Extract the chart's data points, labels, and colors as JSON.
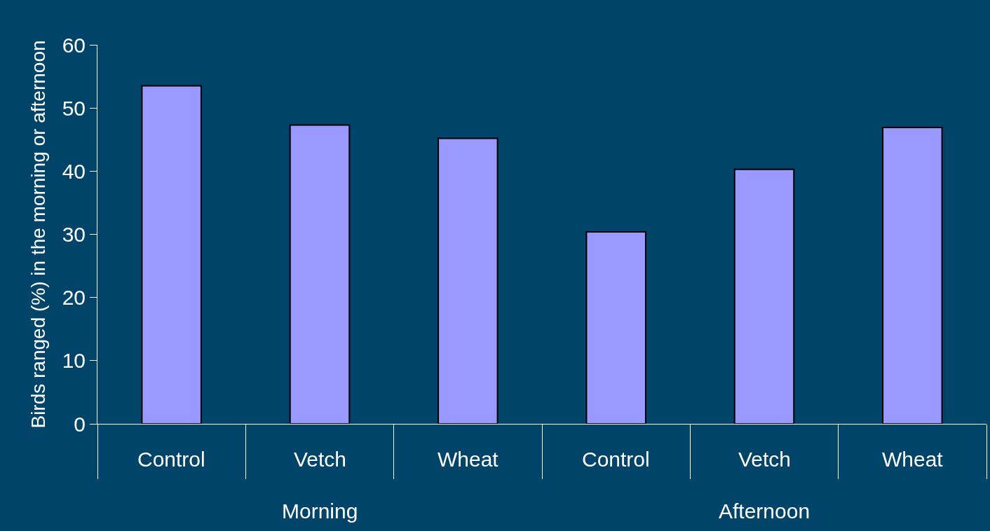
{
  "chart_data": {
    "type": "bar",
    "ylabel": "Birds ranged (%) in the morning or afternoon",
    "categories": [
      "Control",
      "Vetch",
      "Wheat",
      "Control",
      "Vetch",
      "Wheat"
    ],
    "annotations": [
      "Morning",
      "Afternoon"
    ],
    "values": [
      53.5,
      47.3,
      45.2,
      30.4,
      40.3,
      46.9
    ],
    "color": "#9999ff",
    "ylim": [
      0,
      60
    ],
    "yticks": [
      0,
      10,
      20,
      30,
      40,
      50,
      60
    ],
    "grid": false
  }
}
